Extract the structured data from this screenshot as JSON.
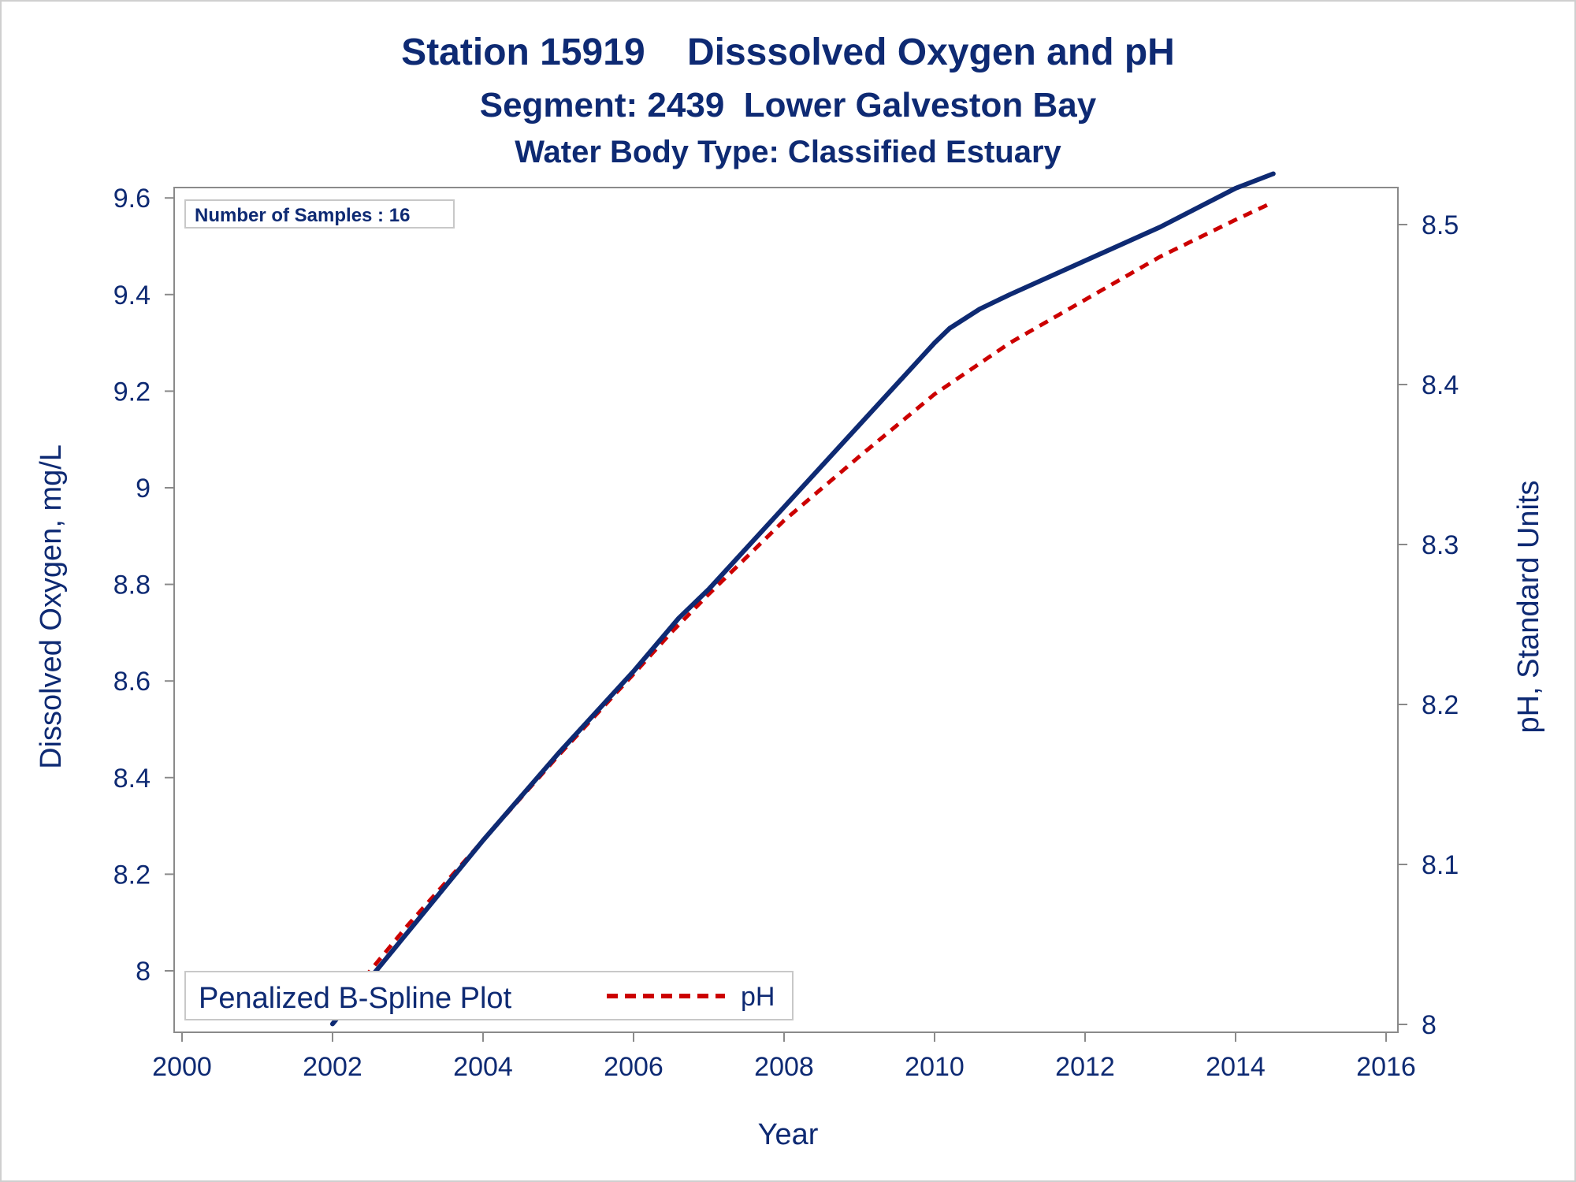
{
  "chart_data": {
    "type": "line",
    "title": "Station 15919    Disssolved Oxygen and pH",
    "subtitle": "Segment: 2439  Lower Galveston Bay",
    "subtitle2": "Water Body Type: Classified Estuary",
    "xlabel": "Year",
    "ylabel_left": "Dissolved Oxygen, mg/L",
    "ylabel_right": "pH, Standard Units",
    "xlim": [
      2000,
      2016
    ],
    "ylim_left": [
      7.88,
      9.67
    ],
    "ylim_right": [
      8.0,
      8.52
    ],
    "x_ticks": [
      "2000",
      "2002",
      "2004",
      "2006",
      "2008",
      "2010",
      "2012",
      "2014",
      "2016"
    ],
    "y_left_ticks": [
      "8",
      "8.2",
      "8.4",
      "8.6",
      "8.8",
      "9",
      "9.2",
      "9.4",
      "9.6"
    ],
    "y_right_ticks": [
      "8",
      "8.1",
      "8.2",
      "8.3",
      "8.4",
      "8.5"
    ],
    "annotation": "Number of Samples : 16",
    "legend": {
      "title": "Penalized B-Spline Plot",
      "entries": [
        "pH"
      ],
      "position": "bottom-left"
    },
    "grid": false,
    "series": [
      {
        "axis": "left",
        "color": "#0e2a73",
        "style": "solid",
        "x": [
          2002.0,
          2003.0,
          2004.0,
          2005.0,
          2006.0,
          2006.6,
          2007.0,
          2008.0,
          2009.0,
          2010.0,
          2010.2,
          2010.6,
          2011.0,
          2012.0,
          2013.0,
          2014.0,
          2014.5
        ],
        "values": [
          7.89,
          8.08,
          8.27,
          8.45,
          8.62,
          8.73,
          8.79,
          8.96,
          9.13,
          9.3,
          9.33,
          9.37,
          9.4,
          9.47,
          9.54,
          9.62,
          9.65
        ]
      },
      {
        "name": "pH",
        "axis": "right",
        "color": "#cc0000",
        "style": "dashed",
        "x": [
          2002.0,
          2003.0,
          2004.0,
          2005.0,
          2006.0,
          2006.5,
          2007.0,
          2008.0,
          2009.0,
          2010.0,
          2010.5,
          2011.0,
          2012.0,
          2013.0,
          2014.0,
          2014.5
        ],
        "values": [
          8.005,
          8.062,
          8.115,
          8.168,
          8.219,
          8.245,
          8.269,
          8.315,
          8.355,
          8.394,
          8.41,
          8.426,
          8.453,
          8.48,
          8.503,
          8.514
        ]
      }
    ]
  }
}
